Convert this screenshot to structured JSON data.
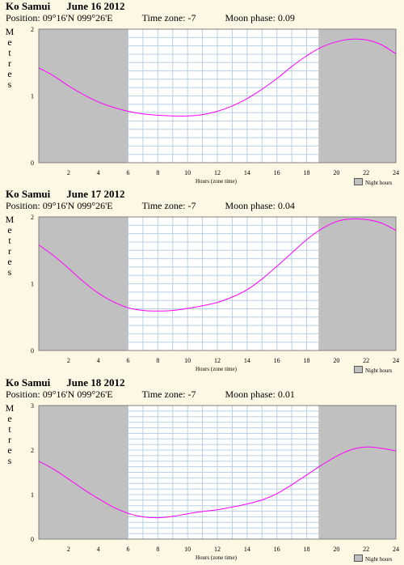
{
  "panels": [
    {
      "location": "Ko Samui",
      "date": "June 16 2012",
      "position_label": "Position:",
      "position": "09°16'N 099°26'E",
      "timezone_label": "Time zone:",
      "timezone": "-7",
      "moon_label": "Moon phase:",
      "moon": "0.09",
      "ylabel": "Metres",
      "xlabel": "Hours (zone time)",
      "legend": "Night hours"
    },
    {
      "location": "Ko Samui",
      "date": "June 17 2012",
      "position_label": "Position:",
      "position": "09°16'N 099°26'E",
      "timezone_label": "Time zone:",
      "timezone": "-7",
      "moon_label": "Moon phase:",
      "moon": "0.04",
      "ylabel": "Metres",
      "xlabel": "Hours (zone time)",
      "legend": "Night hours"
    },
    {
      "location": "Ko Samui",
      "date": "June 18 2012",
      "position_label": "Position:",
      "position": "09°16'N 099°26'E",
      "timezone_label": "Time zone:",
      "timezone": "-7",
      "moon_label": "Moon phase:",
      "moon": "0.01",
      "ylabel": "Metres",
      "xlabel": "Hours (zone time)",
      "legend": "Night hours"
    }
  ],
  "colors": {
    "curve": "#ff00ff",
    "night": "#c0c0c0",
    "grid": "#b8cfe8",
    "background": "#fdf8e4"
  },
  "chart_data": [
    {
      "type": "line",
      "xlabel": "Hours (zone time)",
      "ylabel": "Metres",
      "xlim": [
        0,
        24
      ],
      "ylim": [
        0,
        2
      ],
      "xticks": [
        2,
        4,
        6,
        8,
        10,
        12,
        14,
        16,
        18,
        20,
        22,
        24
      ],
      "yticks": [
        0,
        1,
        2
      ],
      "night_hours": [
        [
          0,
          6
        ],
        [
          18.8,
          24
        ]
      ],
      "series": [
        {
          "x": [
            0,
            1,
            2,
            3,
            4,
            5,
            6,
            7,
            8,
            9,
            10,
            11,
            12,
            13,
            14,
            15,
            16,
            17,
            18,
            19,
            20,
            21,
            22,
            23,
            24
          ],
          "values": [
            1.42,
            1.3,
            1.15,
            1.02,
            0.91,
            0.83,
            0.77,
            0.73,
            0.71,
            0.7,
            0.7,
            0.72,
            0.77,
            0.85,
            0.96,
            1.1,
            1.26,
            1.44,
            1.6,
            1.73,
            1.81,
            1.85,
            1.84,
            1.77,
            1.63
          ]
        }
      ]
    },
    {
      "type": "line",
      "xlabel": "Hours (zone time)",
      "ylabel": "Metres",
      "xlim": [
        0,
        24
      ],
      "ylim": [
        0,
        2
      ],
      "xticks": [
        2,
        4,
        6,
        8,
        10,
        12,
        14,
        16,
        18,
        20,
        22,
        24
      ],
      "yticks": [
        0,
        1,
        2
      ],
      "night_hours": [
        [
          0,
          6
        ],
        [
          18.8,
          24
        ]
      ],
      "series": [
        {
          "x": [
            0,
            1,
            2,
            3,
            4,
            5,
            6,
            7,
            8,
            9,
            10,
            11,
            12,
            13,
            14,
            15,
            16,
            17,
            18,
            19,
            20,
            21,
            22,
            23,
            24
          ],
          "values": [
            1.58,
            1.42,
            1.23,
            1.03,
            0.86,
            0.73,
            0.64,
            0.6,
            0.59,
            0.6,
            0.63,
            0.67,
            0.72,
            0.8,
            0.91,
            1.07,
            1.26,
            1.46,
            1.66,
            1.82,
            1.93,
            1.97,
            1.96,
            1.91,
            1.8
          ]
        }
      ]
    },
    {
      "type": "line",
      "xlabel": "Hours (zone time)",
      "ylabel": "Metres",
      "xlim": [
        0,
        24
      ],
      "ylim": [
        0,
        3
      ],
      "xticks": [
        2,
        4,
        6,
        8,
        10,
        12,
        14,
        16,
        18,
        20,
        22,
        24
      ],
      "yticks": [
        0,
        1,
        2,
        3
      ],
      "night_hours": [
        [
          0,
          6
        ],
        [
          18.8,
          24
        ]
      ],
      "series": [
        {
          "x": [
            0,
            1,
            2,
            3,
            4,
            5,
            6,
            7,
            8,
            9,
            10,
            11,
            12,
            13,
            14,
            15,
            16,
            17,
            18,
            19,
            20,
            21,
            22,
            23,
            24
          ],
          "values": [
            1.75,
            1.57,
            1.35,
            1.12,
            0.91,
            0.72,
            0.58,
            0.5,
            0.48,
            0.51,
            0.57,
            0.62,
            0.66,
            0.72,
            0.79,
            0.88,
            1.02,
            1.22,
            1.44,
            1.66,
            1.86,
            2.01,
            2.07,
            2.04,
            1.98
          ]
        }
      ]
    }
  ]
}
